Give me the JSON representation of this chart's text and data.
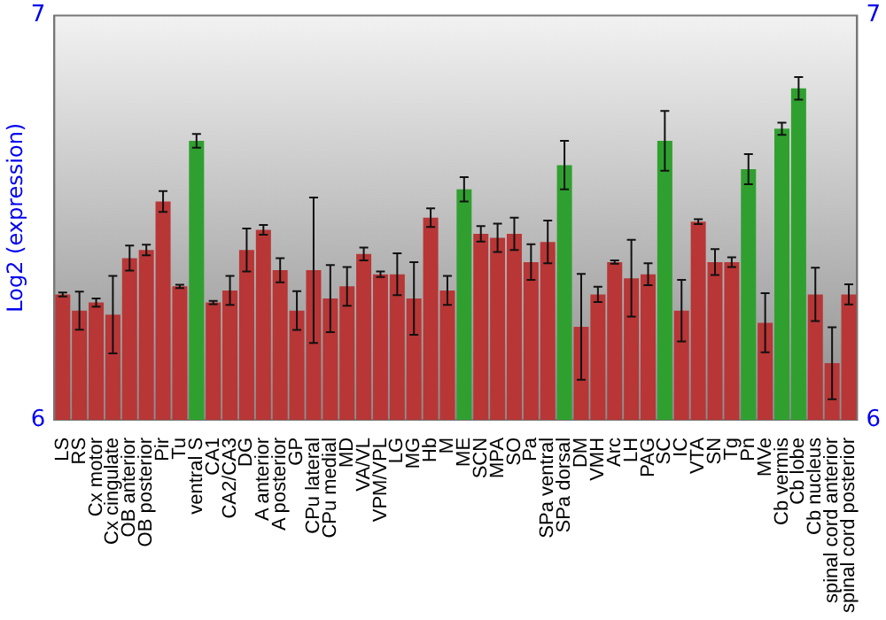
{
  "chart_data": {
    "type": "bar",
    "ylabel": "Log2 (expression)",
    "categories": [
      "LS",
      "RS",
      "Cx motor",
      "Cx cingulate",
      "OB anterior",
      "OB posterior",
      "Pir",
      "Tu",
      "ventral S",
      "CA1",
      "CA2/CA3",
      "DG",
      "A anterior",
      "A posterior",
      "GP",
      "CPu lateral",
      "CPu medial",
      "MD",
      "VA/VL",
      "VPM/VPL",
      "LG",
      "MG",
      "Hb",
      "M",
      "ME",
      "SCN",
      "MPA",
      "SO",
      "Pa",
      "SPa ventral",
      "SPa dorsal",
      "DM",
      "VMH",
      "Arc",
      "LH",
      "PAG",
      "SC",
      "IC",
      "VTA",
      "SN",
      "Tg",
      "Pn",
      "MVe",
      "Cb vermis",
      "Cb lobe",
      "Cb nucleus",
      "spinal cord anterior",
      "spinal cord posterior"
    ],
    "values": [
      6.31,
      6.27,
      6.29,
      6.26,
      6.4,
      6.42,
      6.54,
      6.33,
      6.69,
      6.29,
      6.32,
      6.42,
      6.47,
      6.37,
      6.27,
      6.37,
      6.3,
      6.33,
      6.41,
      6.36,
      6.36,
      6.3,
      6.5,
      6.32,
      6.57,
      6.46,
      6.45,
      6.46,
      6.39,
      6.44,
      6.63,
      6.23,
      6.31,
      6.39,
      6.35,
      6.36,
      6.69,
      6.27,
      6.49,
      6.39,
      6.39,
      6.62,
      6.24,
      6.72,
      6.82,
      6.31,
      6.14,
      6.31
    ],
    "errors": [
      0.005,
      0.047,
      0.01,
      0.096,
      0.031,
      0.013,
      0.026,
      0.004,
      0.017,
      0.004,
      0.036,
      0.053,
      0.012,
      0.03,
      0.048,
      0.18,
      0.083,
      0.048,
      0.016,
      0.007,
      0.052,
      0.09,
      0.023,
      0.036,
      0.03,
      0.019,
      0.035,
      0.04,
      0.044,
      0.053,
      0.06,
      0.131,
      0.019,
      0.004,
      0.095,
      0.027,
      0.074,
      0.076,
      0.006,
      0.032,
      0.012,
      0.037,
      0.073,
      0.015,
      0.028,
      0.066,
      0.089,
      0.025
    ],
    "colors": [
      "#b83636",
      "#b83636",
      "#b83636",
      "#b83636",
      "#b83636",
      "#b83636",
      "#b83636",
      "#b83636",
      "#2fa02f",
      "#b83636",
      "#b83636",
      "#b83636",
      "#b83636",
      "#b83636",
      "#b83636",
      "#b83636",
      "#b83636",
      "#b83636",
      "#b83636",
      "#b83636",
      "#b83636",
      "#b83636",
      "#b83636",
      "#b83636",
      "#2fa02f",
      "#b83636",
      "#b83636",
      "#b83636",
      "#b83636",
      "#b83636",
      "#2fa02f",
      "#b83636",
      "#b83636",
      "#b83636",
      "#b83636",
      "#b83636",
      "#2fa02f",
      "#b83636",
      "#b83636",
      "#b83636",
      "#b83636",
      "#2fa02f",
      "#b83636",
      "#2fa02f",
      "#2fa02f",
      "#b83636",
      "#b83636",
      "#b83636"
    ],
    "ylim": [
      6,
      7
    ],
    "yticks": [
      6,
      7
    ],
    "y2lim": [
      6,
      7
    ],
    "y2ticks": [
      6,
      7
    ],
    "grid": false,
    "legend": false
  }
}
